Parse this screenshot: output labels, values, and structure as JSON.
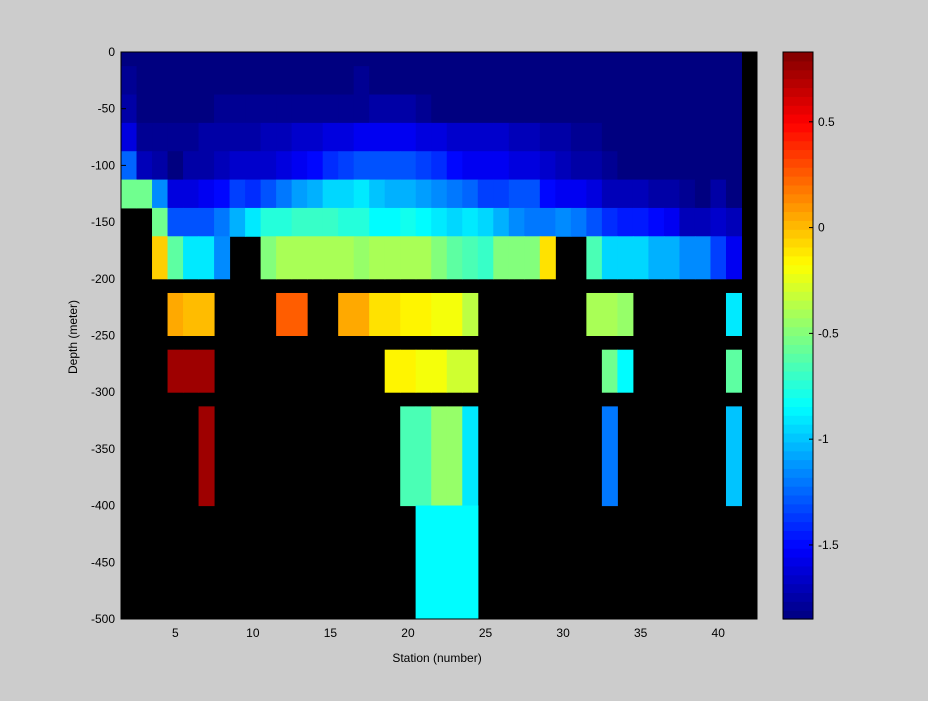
{
  "chart_data": {
    "type": "heatmap",
    "title": "",
    "xlabel": "Station (number)",
    "ylabel": "Depth (meter)",
    "xlim": [
      1.5,
      42.5
    ],
    "ylim": [
      -500,
      0
    ],
    "x_ticks": [
      5,
      10,
      15,
      20,
      25,
      30,
      35,
      40
    ],
    "y_ticks": [
      0,
      -50,
      -100,
      -150,
      -200,
      -250,
      -300,
      -350,
      -400,
      -450,
      -500
    ],
    "missing_color": "#000000",
    "colorbar": {
      "colormap": "jet",
      "range": [
        -1.85,
        0.83
      ],
      "ticks": [
        0.5,
        0,
        -0.5,
        -1,
        -1.5
      ],
      "tick_labels": [
        "0.5",
        "0",
        "-0.5",
        "-1",
        "-1.5"
      ],
      "levels": 64
    },
    "stations": [
      2,
      3,
      4,
      5,
      6,
      7,
      8,
      9,
      10,
      11,
      12,
      13,
      14,
      15,
      16,
      17,
      18,
      19,
      20,
      21,
      22,
      23,
      24,
      25,
      26,
      27,
      28,
      29,
      30,
      31,
      32,
      33,
      34,
      35,
      36,
      37,
      38,
      39,
      40,
      41
    ],
    "depth_rows": [
      {
        "depth": 0,
        "values": [
          -1.85,
          -1.85,
          -1.85,
          -1.85,
          -1.85,
          -1.85,
          -1.85,
          -1.85,
          -1.85,
          -1.85,
          -1.85,
          -1.85,
          -1.85,
          -1.85,
          -1.85,
          -1.85,
          -1.85,
          -1.85,
          -1.85,
          -1.85,
          -1.85,
          -1.85,
          -1.85,
          -1.85,
          -1.85,
          -1.85,
          -1.85,
          -1.85,
          -1.85,
          -1.85,
          -1.85,
          -1.85,
          -1.85,
          -1.85,
          -1.85,
          -1.85,
          -1.85,
          -1.85,
          -1.85,
          -1.85
        ]
      },
      {
        "depth": -25,
        "values": [
          -1.8,
          -1.85,
          -1.85,
          -1.85,
          -1.85,
          -1.85,
          -1.85,
          -1.85,
          -1.85,
          -1.85,
          -1.85,
          -1.85,
          -1.85,
          -1.85,
          -1.85,
          -1.8,
          -1.85,
          -1.85,
          -1.85,
          -1.85,
          -1.85,
          -1.85,
          -1.85,
          -1.85,
          -1.85,
          -1.85,
          -1.85,
          -1.85,
          -1.85,
          -1.85,
          -1.85,
          -1.85,
          -1.85,
          -1.85,
          -1.85,
          -1.85,
          -1.85,
          -1.85,
          -1.85,
          -1.85
        ]
      },
      {
        "depth": -50,
        "values": [
          -1.75,
          -1.85,
          -1.85,
          -1.85,
          -1.85,
          -1.85,
          -1.8,
          -1.8,
          -1.8,
          -1.8,
          -1.8,
          -1.8,
          -1.8,
          -1.8,
          -1.8,
          -1.8,
          -1.75,
          -1.75,
          -1.75,
          -1.8,
          -1.85,
          -1.85,
          -1.85,
          -1.85,
          -1.85,
          -1.85,
          -1.85,
          -1.85,
          -1.85,
          -1.85,
          -1.85,
          -1.85,
          -1.85,
          -1.85,
          -1.85,
          -1.85,
          -1.85,
          -1.85,
          -1.85,
          -1.85
        ]
      },
      {
        "depth": -75,
        "values": [
          -1.6,
          -1.8,
          -1.8,
          -1.8,
          -1.8,
          -1.75,
          -1.75,
          -1.75,
          -1.75,
          -1.7,
          -1.7,
          -1.65,
          -1.65,
          -1.6,
          -1.6,
          -1.55,
          -1.55,
          -1.55,
          -1.55,
          -1.6,
          -1.6,
          -1.65,
          -1.65,
          -1.65,
          -1.65,
          -1.7,
          -1.7,
          -1.75,
          -1.75,
          -1.8,
          -1.8,
          -1.85,
          -1.85,
          -1.85,
          -1.85,
          -1.85,
          -1.85,
          -1.85,
          -1.85,
          -1.85
        ]
      },
      {
        "depth": -100,
        "values": [
          -1.25,
          -1.7,
          -1.75,
          -1.85,
          -1.75,
          -1.75,
          -1.7,
          -1.65,
          -1.65,
          -1.65,
          -1.6,
          -1.55,
          -1.5,
          -1.4,
          -1.35,
          -1.3,
          -1.3,
          -1.3,
          -1.3,
          -1.35,
          -1.4,
          -1.5,
          -1.55,
          -1.55,
          -1.55,
          -1.6,
          -1.6,
          -1.65,
          -1.7,
          -1.75,
          -1.75,
          -1.8,
          -1.85,
          -1.85,
          -1.85,
          -1.85,
          -1.85,
          -1.85,
          -1.85,
          -1.85
        ]
      },
      {
        "depth": -125,
        "values": [
          -0.55,
          -0.55,
          -1.15,
          -1.6,
          -1.6,
          -1.55,
          -1.5,
          -1.35,
          -1.4,
          -1.3,
          -1.2,
          -1.1,
          -1.05,
          -0.95,
          -0.95,
          -0.9,
          -1.0,
          -1.05,
          -1.05,
          -1.1,
          -1.15,
          -1.2,
          -1.25,
          -1.35,
          -1.35,
          -1.3,
          -1.3,
          -1.5,
          -1.55,
          -1.55,
          -1.6,
          -1.7,
          -1.7,
          -1.7,
          -1.75,
          -1.75,
          -1.8,
          -1.85,
          -1.75,
          -1.85
        ]
      },
      {
        "depth": -150,
        "values": [
          null,
          null,
          -0.55,
          -1.3,
          -1.3,
          -1.3,
          -1.2,
          -1.05,
          -0.9,
          -0.75,
          -0.75,
          -0.7,
          -0.7,
          -0.7,
          -0.75,
          -0.75,
          -0.85,
          -0.85,
          -0.8,
          -0.85,
          -0.9,
          -0.95,
          -0.9,
          -0.95,
          -1.05,
          -1.15,
          -1.2,
          -1.2,
          -1.15,
          -1.2,
          -1.3,
          -1.4,
          -1.45,
          -1.45,
          -1.5,
          -1.55,
          -1.7,
          -1.7,
          -1.65,
          -1.7
        ]
      },
      {
        "depth": -175,
        "values": [
          null,
          null,
          -0.05,
          -0.6,
          -0.9,
          -0.9,
          -1.15,
          null,
          null,
          -0.5,
          -0.4,
          -0.4,
          -0.4,
          -0.4,
          -0.4,
          -0.45,
          -0.4,
          -0.4,
          -0.4,
          -0.4,
          -0.5,
          -0.6,
          -0.65,
          -0.7,
          -0.5,
          -0.5,
          -0.5,
          -0.1,
          null,
          null,
          -0.65,
          -0.95,
          -0.95,
          -0.95,
          -1.05,
          -1.05,
          -1.15,
          -1.15,
          -1.35,
          -1.55
        ]
      },
      {
        "depth": -200,
        "values": [
          null,
          null,
          null,
          null,
          null,
          null,
          null,
          null,
          null,
          null,
          null,
          null,
          null,
          null,
          null,
          null,
          null,
          null,
          null,
          null,
          null,
          null,
          null,
          null,
          null,
          null,
          null,
          null,
          null,
          null,
          null,
          null,
          null,
          null,
          null,
          null,
          null,
          null,
          null,
          null
        ]
      },
      {
        "depth": -225,
        "values": [
          null,
          null,
          null,
          0.05,
          0.0,
          0.0,
          null,
          null,
          null,
          null,
          0.25,
          0.25,
          null,
          null,
          0.05,
          0.05,
          -0.1,
          -0.1,
          -0.15,
          -0.15,
          -0.2,
          -0.2,
          -0.35,
          null,
          null,
          null,
          null,
          null,
          null,
          null,
          -0.4,
          -0.4,
          -0.45,
          null,
          null,
          null,
          null,
          null,
          null,
          -0.9
        ]
      },
      {
        "depth": -250,
        "values": [
          null,
          null,
          null,
          null,
          null,
          null,
          null,
          null,
          null,
          null,
          null,
          null,
          null,
          null,
          null,
          null,
          null,
          null,
          null,
          null,
          null,
          null,
          null,
          null,
          null,
          null,
          null,
          null,
          null,
          null,
          null,
          null,
          null,
          null,
          null,
          null,
          null,
          null,
          null,
          null
        ]
      },
      {
        "depth": -275,
        "values": [
          null,
          null,
          null,
          0.75,
          0.75,
          0.75,
          null,
          null,
          null,
          null,
          null,
          null,
          null,
          null,
          null,
          null,
          null,
          -0.15,
          -0.15,
          -0.2,
          -0.2,
          -0.3,
          -0.3,
          null,
          null,
          null,
          null,
          null,
          null,
          null,
          null,
          -0.55,
          -0.85,
          null,
          null,
          null,
          null,
          null,
          null,
          -0.6
        ]
      },
      {
        "depth": -300,
        "values": [
          null,
          null,
          null,
          null,
          null,
          null,
          null,
          null,
          null,
          null,
          null,
          null,
          null,
          null,
          null,
          null,
          null,
          null,
          null,
          null,
          null,
          null,
          null,
          null,
          null,
          null,
          null,
          null,
          null,
          null,
          null,
          null,
          null,
          null,
          null,
          null,
          null,
          null,
          null,
          null
        ]
      },
      {
        "depth": -325,
        "values": [
          null,
          null,
          null,
          null,
          null,
          0.75,
          null,
          null,
          null,
          null,
          null,
          null,
          null,
          null,
          null,
          null,
          null,
          null,
          -0.65,
          -0.65,
          -0.45,
          -0.45,
          -0.9,
          null,
          null,
          null,
          null,
          null,
          null,
          null,
          null,
          -1.2,
          null,
          null,
          null,
          null,
          null,
          null,
          null,
          -1.0
        ]
      },
      {
        "depth": -350,
        "values": [
          null,
          null,
          null,
          null,
          null,
          null,
          null,
          null,
          null,
          null,
          null,
          null,
          null,
          null,
          null,
          null,
          null,
          null,
          null,
          null,
          null,
          null,
          null,
          null,
          null,
          null,
          null,
          null,
          null,
          null,
          null,
          null,
          null,
          null,
          null,
          null,
          null,
          null,
          null,
          null
        ]
      },
      {
        "depth": -375,
        "values": [
          null,
          null,
          null,
          null,
          null,
          null,
          null,
          null,
          null,
          null,
          null,
          null,
          null,
          null,
          null,
          null,
          null,
          null,
          null,
          null,
          null,
          null,
          null,
          null,
          null,
          null,
          null,
          null,
          null,
          null,
          null,
          null,
          null,
          null,
          null,
          null,
          null,
          null,
          null,
          null
        ]
      },
      {
        "depth": -400,
        "values": [
          null,
          null,
          null,
          null,
          null,
          null,
          null,
          null,
          null,
          null,
          null,
          null,
          null,
          null,
          null,
          null,
          null,
          null,
          null,
          -0.85,
          -0.85,
          -0.85,
          -0.85,
          null,
          null,
          null,
          null,
          null,
          null,
          null,
          null,
          null,
          null,
          null,
          null,
          null,
          null,
          null,
          null,
          null
        ]
      },
      {
        "depth": -425,
        "values": [
          null,
          null,
          null,
          null,
          null,
          null,
          null,
          null,
          null,
          null,
          null,
          null,
          null,
          null,
          null,
          null,
          null,
          null,
          null,
          null,
          null,
          null,
          null,
          null,
          null,
          null,
          null,
          null,
          null,
          null,
          null,
          null,
          null,
          null,
          null,
          null,
          null,
          null,
          null,
          null
        ]
      },
      {
        "depth": -450,
        "values": [
          null,
          null,
          null,
          null,
          null,
          null,
          null,
          null,
          null,
          null,
          null,
          null,
          null,
          null,
          null,
          null,
          null,
          null,
          null,
          null,
          null,
          null,
          null,
          null,
          null,
          null,
          null,
          null,
          null,
          null,
          null,
          null,
          null,
          null,
          null,
          null,
          null,
          null,
          null,
          null
        ]
      },
      {
        "depth": -475,
        "values": [
          null,
          null,
          null,
          null,
          null,
          null,
          null,
          null,
          null,
          null,
          null,
          null,
          null,
          null,
          null,
          null,
          null,
          null,
          null,
          null,
          null,
          null,
          null,
          null,
          null,
          null,
          null,
          null,
          null,
          null,
          null,
          null,
          null,
          null,
          null,
          null,
          null,
          null,
          null,
          null
        ]
      }
    ],
    "row_extents": [
      [
        0,
        -12.5
      ],
      [
        -12.5,
        -37.5
      ],
      [
        -37.5,
        -62.5
      ],
      [
        -62.5,
        -87.5
      ],
      [
        -87.5,
        -112.5
      ],
      [
        -112.5,
        -137.5
      ],
      [
        -137.5,
        -162.5
      ],
      [
        -162.5,
        -200
      ],
      [
        -200,
        -212.5
      ],
      [
        -212.5,
        -250
      ],
      [
        -250,
        -262.5
      ],
      [
        -262.5,
        -300
      ],
      [
        -300,
        -312.5
      ],
      [
        -312.5,
        -400
      ],
      [
        -400,
        -412.5
      ],
      [
        -412.5,
        -425
      ],
      [
        -400,
        -500
      ],
      [
        -425,
        -450
      ],
      [
        -450,
        -475
      ],
      [
        -475,
        -500
      ]
    ]
  }
}
